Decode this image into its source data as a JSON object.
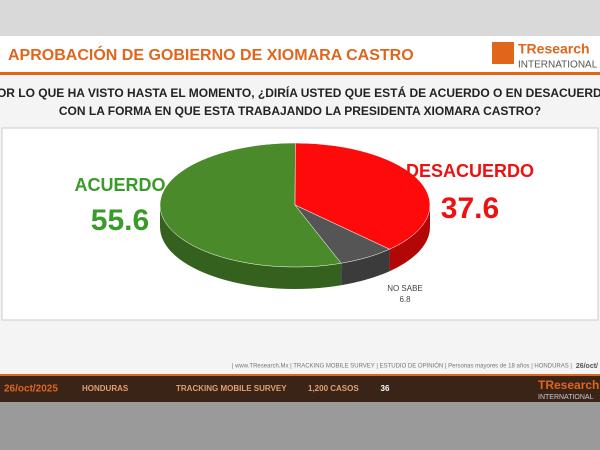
{
  "chart_data": {
    "type": "pie",
    "title": "APROBACIÓN DE GOBIERNO DE XIOMARA CASTRO",
    "subtitle": [
      "POR LO QUE HA VISTO HASTA EL MOMENTO, ¿DIRÍA USTED QUE ESTÁ DE ACUERDO O EN DESACUERDO",
      "CON LA FORMA EN QUE ESTA TRABAJANDO LA PRESIDENTA XIOMARA CASTRO?"
    ],
    "categories": [
      "ACUERDO",
      "DESACUERDO",
      "NO SABE"
    ],
    "values": [
      55.6,
      37.6,
      6.8
    ],
    "colors": [
      "#4b8a2b",
      "#ff0a0a",
      "#555555"
    ]
  },
  "brand": {
    "name": "TResearch",
    "tagline": "INTERNATIONAL"
  },
  "footer": {
    "note": "| www.TResearch.Mx | TRACKING MOBILE SURVEY | ESTUDIO DE OPINIÓN | Personas mayores de 18 años | HONDURAS |",
    "date_short": "26/oct/",
    "bar": [
      "26/oct/2025",
      "HONDURAS",
      "TRACKING MOBILE SURVEY",
      "1,200 CASOS"
    ],
    "page": "36"
  }
}
